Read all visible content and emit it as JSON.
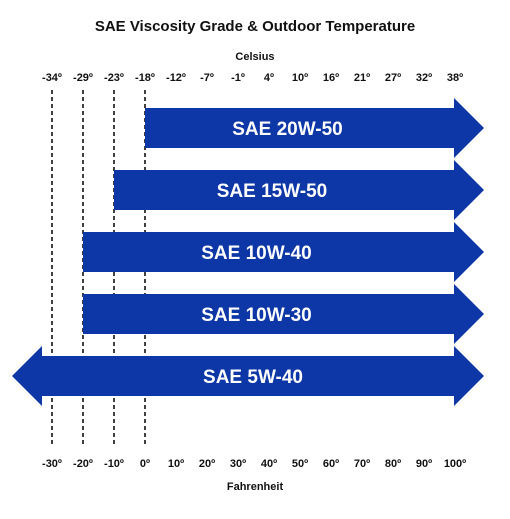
{
  "title": "SAE Viscosity Grade & Outdoor Temperature",
  "celsius_label": "Celsius",
  "fahrenheit_label": "Fahrenheit",
  "colors": {
    "arrow": "#0d36a6",
    "text": "#111111"
  },
  "chart_data": {
    "type": "range-arrows",
    "celsius_ticks": [
      "-34º",
      "-29º",
      "-23º",
      "-18º",
      "-12º",
      "-7º",
      "-1º",
      "4º",
      "10º",
      "16º",
      "21º",
      "27º",
      "32º",
      "38º"
    ],
    "fahrenheit_ticks": [
      "-30º",
      "-20º",
      "-10º",
      "0º",
      "10º",
      "20º",
      "30º",
      "40º",
      "50º",
      "60º",
      "70º",
      "80º",
      "90º",
      "100º"
    ],
    "fahrenheit_range": [
      -30,
      100
    ],
    "grades": [
      {
        "name": "SAE 20W-50",
        "min_f": 0,
        "max_f": 100,
        "open_left": false,
        "open_right": true
      },
      {
        "name": "SAE 15W-50",
        "min_f": -10,
        "max_f": 100,
        "open_left": false,
        "open_right": true
      },
      {
        "name": "SAE 10W-40",
        "min_f": -20,
        "max_f": 100,
        "open_left": false,
        "open_right": true
      },
      {
        "name": "SAE 10W-30",
        "min_f": -20,
        "max_f": 100,
        "open_left": false,
        "open_right": true
      },
      {
        "name": "SAE 5W-40",
        "min_f": -30,
        "max_f": 100,
        "open_left": true,
        "open_right": true
      }
    ],
    "limit_lines_f": [
      -30,
      -20,
      -10,
      0
    ]
  }
}
